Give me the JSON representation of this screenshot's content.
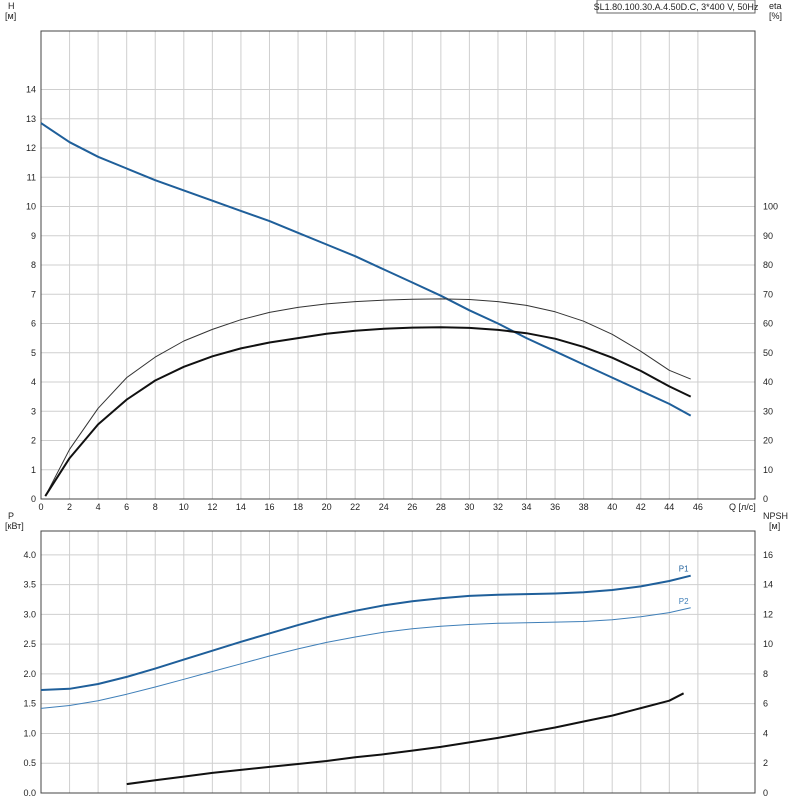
{
  "title": "SL1.80.100.30.A.4.50D.C, 3*400 V, 50Hz",
  "chart_data": [
    {
      "type": "line",
      "xlabel": "Q [л/с]",
      "ylabel_left": [
        "H",
        "[м]"
      ],
      "ylabel_right": [
        "eta",
        "[%]"
      ],
      "xlim": [
        0,
        50
      ],
      "ylim_left": [
        0,
        16
      ],
      "ylim_right": [
        0,
        160
      ],
      "x_ticks": [
        0,
        2,
        4,
        6,
        8,
        10,
        12,
        14,
        16,
        18,
        20,
        22,
        24,
        26,
        28,
        30,
        32,
        34,
        36,
        38,
        40,
        42,
        44,
        46
      ],
      "y_ticks_left": [
        0,
        1,
        2,
        3,
        4,
        5,
        6,
        7,
        8,
        9,
        10,
        11,
        12,
        13,
        14
      ],
      "y_ticks_right": [
        0,
        10,
        20,
        30,
        40,
        50,
        60,
        70,
        80,
        90,
        100
      ],
      "grid": true,
      "series": [
        {
          "color": "#1f5f9a",
          "width": 2,
          "axis": "left",
          "x": [
            0,
            2,
            4,
            6,
            8,
            10,
            12,
            14,
            16,
            18,
            20,
            22,
            24,
            26,
            28,
            30,
            32,
            34,
            36,
            38,
            40,
            42,
            44,
            45.5
          ],
          "values": [
            12.85,
            12.2,
            11.7,
            11.3,
            10.9,
            10.55,
            10.2,
            9.85,
            9.5,
            9.1,
            8.7,
            8.3,
            7.85,
            7.4,
            6.95,
            6.45,
            6.0,
            5.5,
            5.05,
            4.6,
            4.15,
            3.7,
            3.25,
            2.85
          ]
        },
        {
          "color": "#333333",
          "width": 1,
          "axis": "right",
          "x": [
            0.3,
            2,
            4,
            6,
            8,
            10,
            12,
            14,
            16,
            18,
            20,
            22,
            24,
            26,
            28,
            30,
            32,
            34,
            36,
            38,
            40,
            42,
            44,
            45.5
          ],
          "values": [
            1,
            17,
            31,
            41.5,
            48.5,
            54,
            58,
            61.3,
            63.8,
            65.5,
            66.7,
            67.5,
            68,
            68.3,
            68.4,
            68.2,
            67.5,
            66.2,
            64,
            60.8,
            56.3,
            50.5,
            44,
            41
          ]
        },
        {
          "color": "#111111",
          "width": 2,
          "axis": "right",
          "x": [
            0.3,
            2,
            4,
            6,
            8,
            10,
            12,
            14,
            16,
            18,
            20,
            22,
            24,
            26,
            28,
            30,
            32,
            34,
            36,
            38,
            40,
            42,
            44,
            45.5
          ],
          "values": [
            1,
            14,
            25.5,
            34,
            40.5,
            45.2,
            48.8,
            51.5,
            53.5,
            55,
            56.5,
            57.5,
            58.2,
            58.6,
            58.7,
            58.5,
            57.8,
            56.7,
            54.8,
            52,
            48.3,
            43.8,
            38.5,
            35
          ]
        }
      ]
    },
    {
      "type": "line",
      "xlim": [
        0,
        50
      ],
      "ylabel_left": [
        "P",
        "[кВт]"
      ],
      "ylabel_right": [
        "NPSH",
        "[м]"
      ],
      "ylim_left": [
        0,
        4.4
      ],
      "ylim_right": [
        0,
        17.6
      ],
      "y_ticks_left": [
        "0.0",
        "0.5",
        "1.0",
        "1.5",
        "2.0",
        "2.5",
        "3.0",
        "3.5",
        "4.0"
      ],
      "y_ticks_left_values": [
        0,
        0.5,
        1.0,
        1.5,
        2.0,
        2.5,
        3.0,
        3.5,
        4.0
      ],
      "y_ticks_right": [
        0,
        2,
        4,
        6,
        8,
        10,
        12,
        14,
        16
      ],
      "grid": true,
      "series": [
        {
          "name": "P1",
          "color": "#1f5f9a",
          "width": 2,
          "axis": "left",
          "x": [
            0,
            2,
            4,
            6,
            8,
            10,
            12,
            14,
            16,
            18,
            20,
            22,
            24,
            26,
            28,
            30,
            32,
            34,
            36,
            38,
            40,
            42,
            44,
            45.5
          ],
          "values": [
            1.73,
            1.75,
            1.83,
            1.95,
            2.09,
            2.24,
            2.39,
            2.54,
            2.68,
            2.82,
            2.95,
            3.06,
            3.15,
            3.22,
            3.27,
            3.31,
            3.33,
            3.34,
            3.35,
            3.37,
            3.41,
            3.47,
            3.56,
            3.65
          ]
        },
        {
          "name": "P2",
          "color": "#3f7fb8",
          "width": 1,
          "axis": "left",
          "x": [
            0,
            2,
            4,
            6,
            8,
            10,
            12,
            14,
            16,
            18,
            20,
            22,
            24,
            26,
            28,
            30,
            32,
            34,
            36,
            38,
            40,
            42,
            44,
            45.5
          ],
          "values": [
            1.42,
            1.47,
            1.55,
            1.66,
            1.78,
            1.91,
            2.04,
            2.17,
            2.3,
            2.42,
            2.53,
            2.62,
            2.7,
            2.76,
            2.8,
            2.83,
            2.85,
            2.86,
            2.87,
            2.88,
            2.91,
            2.96,
            3.03,
            3.11
          ]
        },
        {
          "color": "#111111",
          "width": 2,
          "axis": "right",
          "x": [
            6,
            8,
            10,
            12,
            14,
            16,
            18,
            20,
            22,
            24,
            26,
            28,
            30,
            32,
            34,
            36,
            38,
            40,
            42,
            44,
            45
          ],
          "values": [
            0.6,
            0.85,
            1.1,
            1.35,
            1.55,
            1.75,
            1.95,
            2.15,
            2.4,
            2.6,
            2.85,
            3.1,
            3.4,
            3.7,
            4.05,
            4.4,
            4.8,
            5.2,
            5.7,
            6.2,
            6.7
          ]
        }
      ]
    }
  ]
}
